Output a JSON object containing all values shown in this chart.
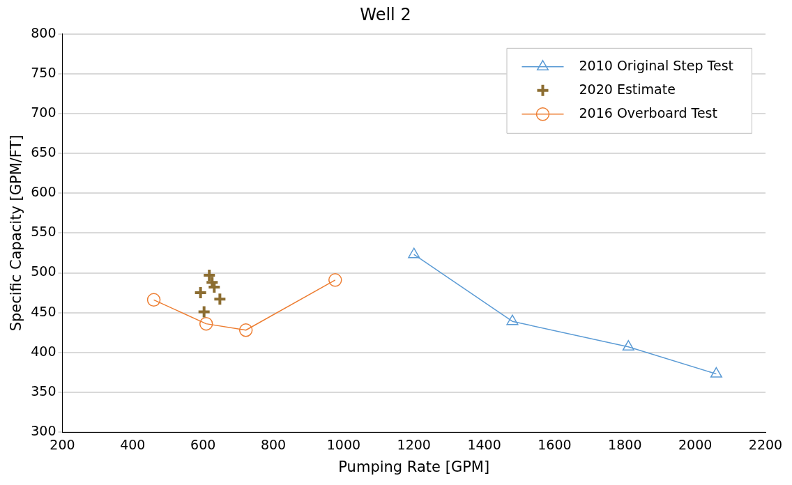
{
  "chart_data": {
    "type": "line",
    "title": "Well 2",
    "xlabel": "Pumping Rate [GPM]",
    "ylabel": "Specific Capacity [GPM/FT]",
    "xlim": [
      200,
      2200
    ],
    "xticks": [
      200,
      400,
      600,
      800,
      1000,
      1200,
      1400,
      1600,
      1800,
      2000,
      2200
    ],
    "ylim": [
      300,
      800
    ],
    "yticks": [
      300,
      350,
      400,
      450,
      500,
      550,
      600,
      650,
      700,
      750,
      800
    ],
    "grid": "y",
    "legend": "top right",
    "series": [
      {
        "name": "2010 Original Step Test",
        "type": "line",
        "marker": "triangle",
        "color": "#5b9bd5",
        "x": [
          1200,
          1480,
          1810,
          2060
        ],
        "values": [
          523,
          439,
          407,
          373
        ]
      },
      {
        "name": "2020 Estimate",
        "type": "scatter",
        "marker": "cross",
        "color": "#8c6d31",
        "x": [
          618,
          626,
          632,
          593,
          648,
          603
        ],
        "values": [
          497,
          488,
          482,
          475,
          467,
          451
        ]
      },
      {
        "name": "2016 Overboard Test",
        "type": "line",
        "marker": "circle",
        "color": "#ed7d31",
        "x": [
          460,
          609,
          722,
          976
        ],
        "values": [
          466,
          436,
          428,
          491
        ]
      }
    ]
  }
}
